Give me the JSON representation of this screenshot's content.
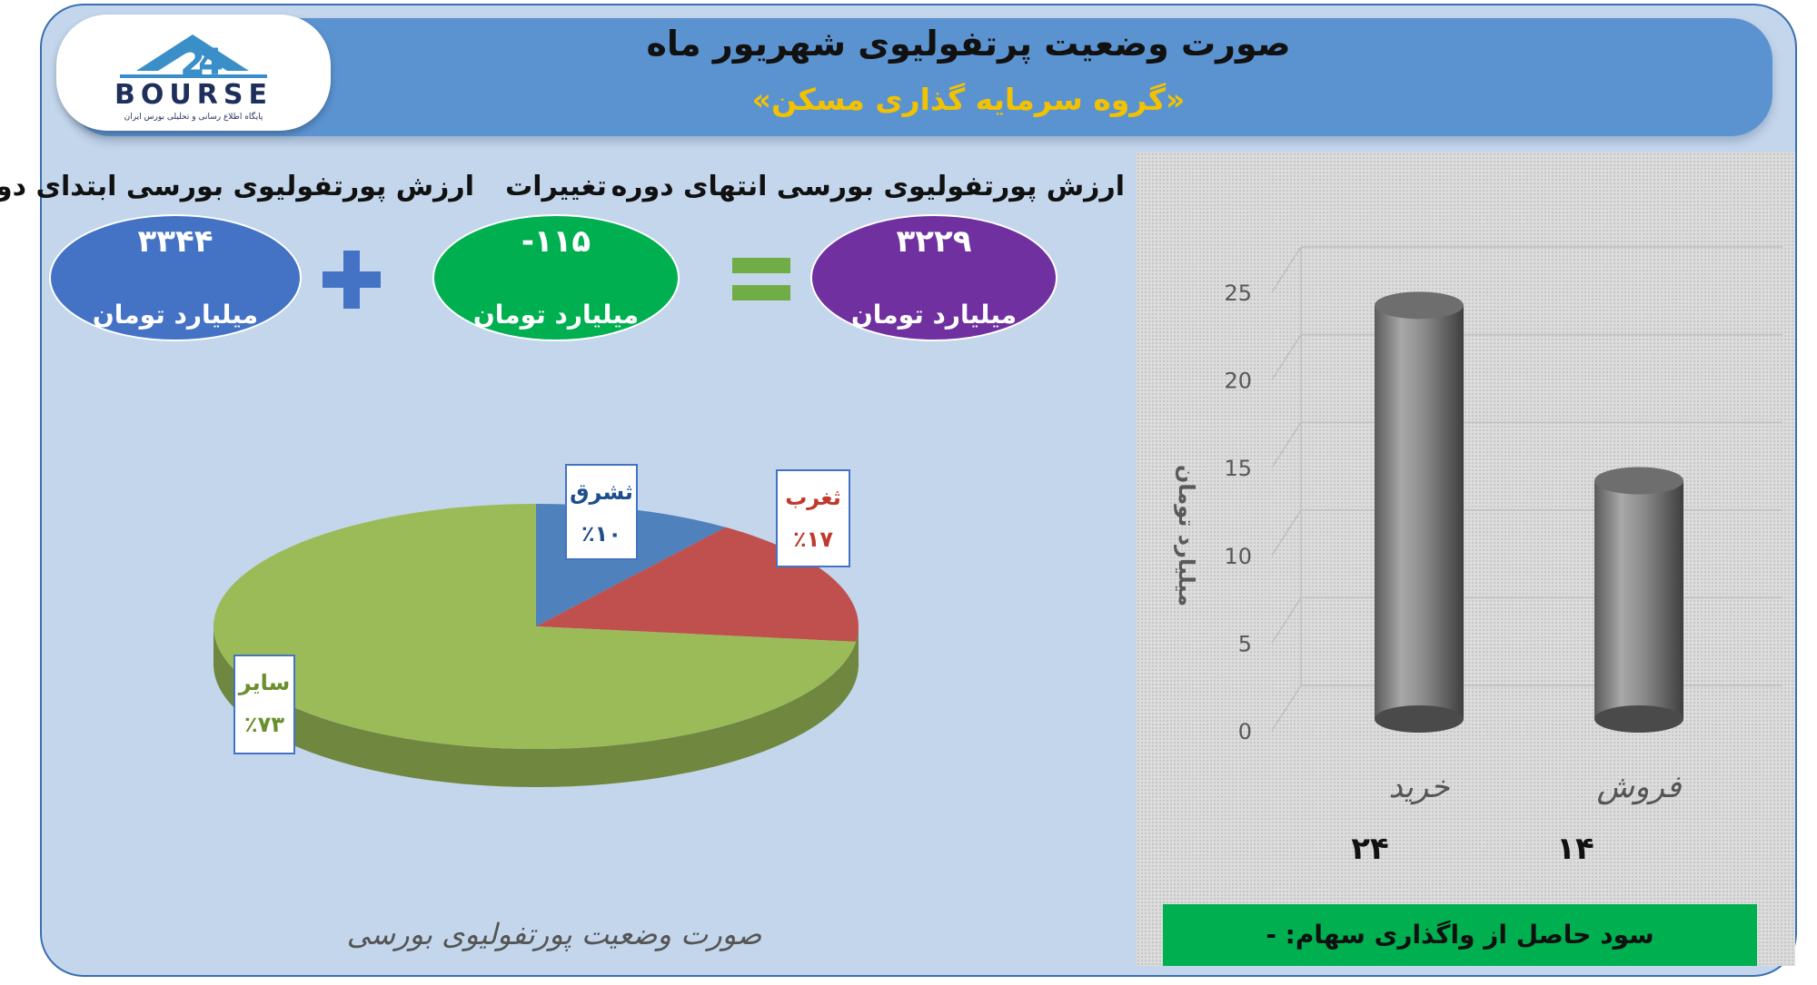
{
  "header": {
    "title": "صورت وضعیت پرتفولیوی شهریور ماه",
    "subtitle": "«گروه سرمایه گذاری مسکن»"
  },
  "logo": {
    "text": "BOURSE",
    "tagline": "پایگاه اطلاع رسانی و تحلیلی بورس ایران",
    "colors": {
      "mark": "#3a8fc8",
      "text": "#1f2f5c"
    }
  },
  "summary": {
    "start": {
      "label": "ارزش پورتفولیوی بورسی ابتدای دوره",
      "value": "۳۳۴۴",
      "unit": "میلیارد تومان",
      "color": "#4472c4"
    },
    "change": {
      "label": "تغییرات",
      "value": "-۱۱۵",
      "unit": "میلیارد تومان",
      "color": "#00b050"
    },
    "end": {
      "label": "ارزش پورتفولیوی بورسی انتهای دوره",
      "value": "۳۲۲۹",
      "unit": "میلیارد تومان",
      "color": "#7030a0"
    },
    "plus_color": "#4472c4",
    "equals_color": "#70ad47"
  },
  "profit": {
    "text": "سود حاصل از واگذاری سهام: -"
  },
  "chart_data": [
    {
      "type": "pie",
      "title": "صورت وضعیت پورتفولیوی بورسی",
      "labels": [
        "ثشرق",
        "ثغرب",
        "سایر"
      ],
      "values": [
        10,
        17,
        73
      ],
      "display_values": [
        "٪۱۰",
        "٪۱۷",
        "٪۷۳"
      ],
      "colors": [
        "#4f81bd",
        "#c0504d",
        "#9bbb59"
      ],
      "label_colors": [
        "#1f4e8c",
        "#c0392b",
        "#6a8f2d"
      ]
    },
    {
      "type": "bar",
      "categories": [
        "خرید",
        "فروش"
      ],
      "values": [
        24,
        14
      ],
      "value_labels": [
        "۲۴",
        "۱۴"
      ],
      "ylabel": "میلیارد تومان",
      "ylim": [
        0,
        25
      ],
      "yticks": [
        0,
        5,
        10,
        15,
        20,
        25
      ],
      "grid": true,
      "bar_color": "#8c8c8c"
    }
  ]
}
